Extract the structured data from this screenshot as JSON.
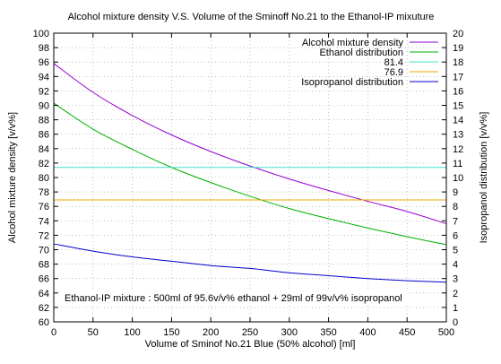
{
  "chart_data": {
    "type": "line",
    "title": "Alcohol mixture density V.S. Volume of the Sminoff No.21 to the Ethanol-IP mixuture",
    "xlabel": "Volume of Sminof No.21 Blue (50% alcohol) [ml]",
    "ylabel": "Alcohol mixture density [v/v%]",
    "y2label": "Isopropanol distribution [v/v%]",
    "xlim": [
      0,
      500
    ],
    "ylim": [
      60,
      100
    ],
    "y2lim": [
      0,
      20
    ],
    "xticks": [
      0,
      50,
      100,
      150,
      200,
      250,
      300,
      350,
      400,
      450,
      500
    ],
    "yticks": [
      60,
      62,
      64,
      66,
      68,
      70,
      72,
      74,
      76,
      78,
      80,
      82,
      84,
      86,
      88,
      90,
      92,
      94,
      96,
      98,
      100
    ],
    "y2ticks": [
      0,
      1,
      2,
      3,
      4,
      5,
      6,
      7,
      8,
      9,
      10,
      11,
      12,
      13,
      14,
      15,
      16,
      17,
      18,
      19,
      20
    ],
    "grid": true,
    "legend_position": "top-right",
    "annotation": "Ethanol-IP mixture : 500ml of 95.6v/v% ethanol + 29ml of 99v/v% isopropanol",
    "x": [
      0,
      50,
      100,
      150,
      200,
      250,
      300,
      350,
      400,
      450,
      500
    ],
    "series": [
      {
        "name": "Alcohol mixture density",
        "axis": "y",
        "color": "#9400d3",
        "values": [
          95.8,
          91.8,
          88.6,
          85.9,
          83.6,
          81.6,
          79.8,
          78.2,
          76.7,
          75.3,
          73.6
        ]
      },
      {
        "name": "Ethanol distribution",
        "axis": "y",
        "color": "#00b000",
        "values": [
          90.3,
          86.7,
          83.9,
          81.4,
          79.3,
          77.4,
          75.7,
          74.3,
          73.0,
          71.8,
          70.7
        ]
      },
      {
        "name": "81.4",
        "axis": "y",
        "color": "#40e0d0",
        "values": [
          81.4,
          81.4,
          81.4,
          81.4,
          81.4,
          81.4,
          81.4,
          81.4,
          81.4,
          81.4,
          81.4
        ]
      },
      {
        "name": "76.9",
        "axis": "y",
        "color": "#e8a800",
        "values": [
          76.9,
          76.9,
          76.9,
          76.9,
          76.9,
          76.9,
          76.9,
          76.9,
          76.9,
          76.9,
          76.9
        ]
      },
      {
        "name": "Isopropanol distribution",
        "axis": "y2",
        "color": "#0000cc",
        "values": [
          5.4,
          4.9,
          4.5,
          4.2,
          3.9,
          3.7,
          3.4,
          3.2,
          3.0,
          2.85,
          2.75
        ]
      }
    ]
  }
}
